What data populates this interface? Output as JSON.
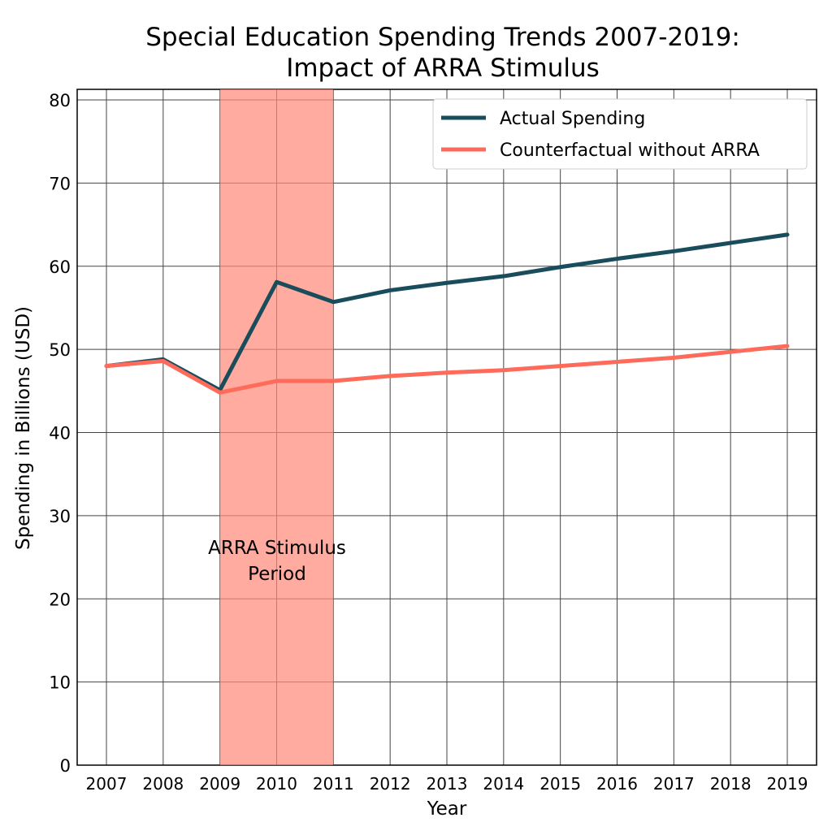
{
  "chart_data": {
    "type": "line",
    "title": "Special Education Spending Trends 2007-2019:",
    "subtitle": "Impact of ARRA Stimulus",
    "xlabel": "Year",
    "ylabel": "Spending in Billions (USD)",
    "x": [
      2007,
      2008,
      2009,
      2010,
      2011,
      2012,
      2013,
      2014,
      2015,
      2016,
      2017,
      2018,
      2019
    ],
    "ylim": [
      0,
      80
    ],
    "yticks": [
      0,
      10,
      20,
      30,
      40,
      50,
      60,
      70,
      80
    ],
    "grid": true,
    "legend_position": "top-right",
    "series": [
      {
        "name": "Actual Spending",
        "color": "#1a4d5c",
        "values": [
          48.0,
          48.8,
          45.1,
          58.1,
          55.7,
          57.1,
          58.0,
          58.8,
          59.9,
          60.9,
          61.8,
          62.8,
          63.8
        ]
      },
      {
        "name": "Counterfactual without ARRA",
        "color": "#ff6b5b",
        "values": [
          48.0,
          48.6,
          44.8,
          46.2,
          46.2,
          46.8,
          47.2,
          47.5,
          48.0,
          48.5,
          49.0,
          49.7,
          50.4
        ]
      }
    ],
    "shaded_region": {
      "start": 2009,
      "end": 2011,
      "color": "#ff8a7a",
      "label_line1": "ARRA Stimulus",
      "label_line2": "Period"
    }
  }
}
